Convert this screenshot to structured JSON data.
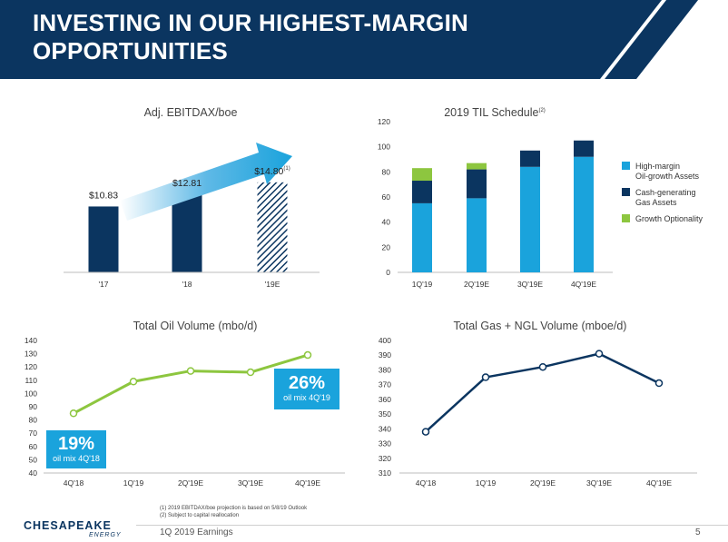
{
  "slide": {
    "title_line1": "INVESTING IN OUR HIGHEST-MARGIN",
    "title_line2": "OPPORTUNITIES",
    "footer": "1Q 2019 Earnings",
    "page_number": "5",
    "footnote1": "(1)  2019 EBITDAX/boe projection is based on 5/8/19 Outlook",
    "footnote2": "(2)  Subject to capital reallocation",
    "logo_name": "CHESAPEAKE",
    "logo_sub": "ENERGY",
    "colors": {
      "navy": "#0b3560",
      "cyan": "#1aa3dc",
      "green": "#8dc63f",
      "white": "#ffffff"
    }
  },
  "chart_data": [
    {
      "type": "bar",
      "title": "Adj. EBITDAX/boe",
      "categories": [
        "'17",
        "'18",
        "'19E"
      ],
      "values": [
        10.83,
        12.81,
        14.8
      ],
      "value_labels": [
        "$10.83",
        "$12.81",
        "$14.80"
      ],
      "footnote_marks": [
        "",
        "",
        "(1)"
      ],
      "ylim": [
        0,
        16
      ],
      "annotation": "growth arrow",
      "fill_styles": [
        "solid",
        "solid",
        "hatched"
      ],
      "color": "#0b3560"
    },
    {
      "type": "bar",
      "stacked": true,
      "title": "2019 TIL Schedule",
      "title_mark": "(2)",
      "categories": [
        "1Q'19",
        "2Q'19E",
        "3Q'19E",
        "4Q'19E"
      ],
      "ylim": [
        0,
        120
      ],
      "yticks": [
        0,
        20,
        40,
        60,
        80,
        100,
        120
      ],
      "series": [
        {
          "name": "High-margin Oil-growth Assets",
          "legend_lines": [
            "High-margin",
            "Oil-growth Assets"
          ],
          "color": "#1aa3dc",
          "values": [
            55,
            59,
            84,
            92
          ]
        },
        {
          "name": "Cash-generating Gas Assets",
          "legend_lines": [
            "Cash-generating",
            "Gas Assets"
          ],
          "color": "#0b3560",
          "values": [
            18,
            23,
            13,
            13
          ]
        },
        {
          "name": "Growth Optionality",
          "legend_lines": [
            "Growth Optionality"
          ],
          "color": "#8dc63f",
          "values": [
            10,
            5,
            0,
            0
          ]
        }
      ],
      "legend_position": "right"
    },
    {
      "type": "line",
      "title": "Total Oil Volume (mbo/d)",
      "categories": [
        "4Q'18",
        "1Q'19",
        "2Q'19E",
        "3Q'19E",
        "4Q'19E"
      ],
      "values": [
        85,
        109,
        117,
        116,
        129
      ],
      "ylim": [
        40,
        140
      ],
      "yticks": [
        40,
        50,
        60,
        70,
        80,
        90,
        100,
        110,
        120,
        130,
        140
      ],
      "color": "#8dc63f",
      "annotations": [
        {
          "big": "19%",
          "small": "oil mix 4Q'18"
        },
        {
          "big": "26%",
          "small": "oil mix 4Q'19"
        }
      ]
    },
    {
      "type": "line",
      "title": "Total Gas + NGL Volume (mboe/d)",
      "categories": [
        "4Q'18",
        "1Q'19",
        "2Q'19E",
        "3Q'19E",
        "4Q'19E"
      ],
      "values": [
        338,
        375,
        382,
        391,
        371
      ],
      "ylim": [
        310,
        400
      ],
      "yticks": [
        310,
        320,
        330,
        340,
        350,
        360,
        370,
        380,
        390,
        400
      ],
      "color": "#0b3560"
    }
  ]
}
